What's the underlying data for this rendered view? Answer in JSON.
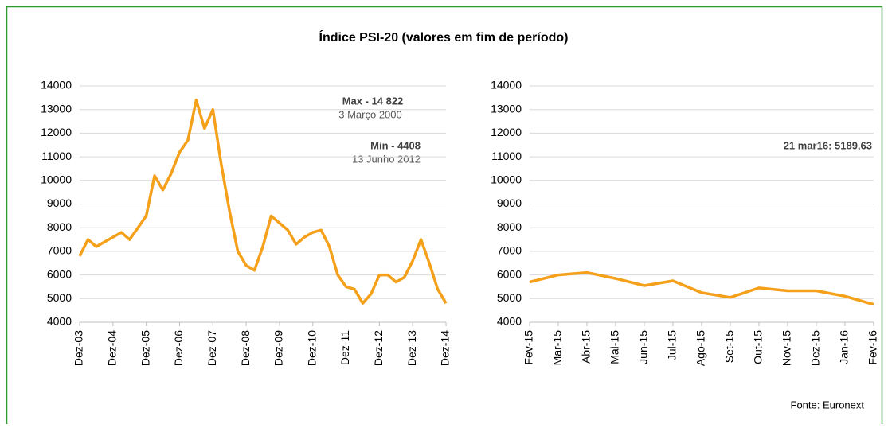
{
  "title": "Índice PSI-20 (valores em fim de período)",
  "source": "Fonte: Euronext",
  "chart_data": [
    {
      "type": "line",
      "categories": [
        "Dez-03",
        null,
        null,
        null,
        "Dez-04",
        null,
        null,
        null,
        "Dez-05",
        null,
        null,
        null,
        "Dez-06",
        null,
        null,
        null,
        "Dez-07",
        null,
        null,
        null,
        "Dez-08",
        null,
        null,
        null,
        "Dez-09",
        null,
        null,
        null,
        "Dez-10",
        null,
        null,
        null,
        "Dez-11",
        null,
        null,
        null,
        "Dez-12",
        null,
        null,
        null,
        "Dez-13",
        null,
        null,
        null,
        "Dez-14"
      ],
      "series": [
        {
          "name": null,
          "color": "#f5a01a",
          "values": [
            6800,
            7500,
            7200,
            7400,
            7600,
            7800,
            7500,
            8000,
            8500,
            10200,
            9600,
            10300,
            11200,
            11700,
            13400,
            12200,
            13000,
            10700,
            8700,
            7000,
            6400,
            6200,
            7200,
            8500,
            8200,
            7900,
            7300,
            7600,
            7800,
            7900,
            7200,
            6000,
            5500,
            5400,
            4800,
            5200,
            6000,
            6000,
            5700,
            5900,
            6600,
            7500,
            6500,
            5400,
            4800
          ]
        }
      ],
      "ylim": [
        4000,
        14000
      ],
      "yticks": [
        4000,
        5000,
        6000,
        7000,
        8000,
        9000,
        10000,
        11000,
        12000,
        13000,
        14000
      ],
      "grid": true,
      "annotations": [
        "Max - 14 822",
        "3 Março 2000",
        "Min -  4408",
        "13 Junho 2012"
      ]
    },
    {
      "type": "line",
      "categories": [
        "Fev-15",
        "Mar-15",
        "Abr-15",
        "Mai-15",
        "Jun-15",
        "Jul-15",
        "Ago-15",
        "Set-15",
        "Out-15",
        "Nov-15",
        "Dez-15",
        "Jan-16",
        "Fev-16"
      ],
      "series": [
        {
          "name": null,
          "color": "#f5a01a",
          "values": [
            5700,
            6000,
            6100,
            5850,
            5550,
            5750,
            5250,
            5050,
            5450,
            5330,
            5330,
            5100,
            4750
          ]
        }
      ],
      "ylim": [
        4000,
        14000
      ],
      "yticks": [
        4000,
        5000,
        6000,
        7000,
        8000,
        9000,
        10000,
        11000,
        12000,
        13000,
        14000
      ],
      "grid": true,
      "annotations": [
        "21 mar16: 5189,63"
      ]
    }
  ]
}
